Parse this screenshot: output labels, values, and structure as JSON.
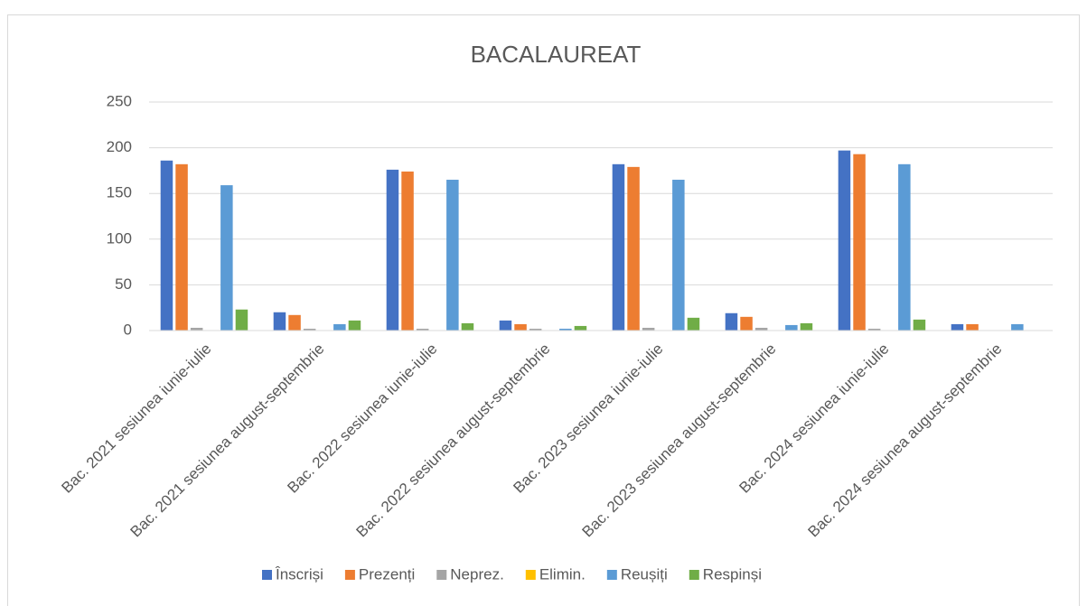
{
  "chart_data": {
    "type": "bar",
    "title": "BACALAUREAT",
    "categories": [
      "Bac. 2021 sesiunea iunie-iulie",
      "Bac. 2021 sesiunea august-septembrie",
      "Bac. 2022 sesiunea iunie-iulie",
      "Bac. 2022 sesiunea august-septembrie",
      "Bac. 2023 sesiunea iunie-iulie",
      "Bac. 2023 sesiunea august-septembrie",
      "Bac. 2024 sesiunea iunie-iulie",
      "Bac. 2024 sesiunea august-septembrie"
    ],
    "series": [
      {
        "name": "Înscriși",
        "color": "#4472c4",
        "values": [
          186,
          20,
          176,
          11,
          182,
          19,
          197,
          7
        ]
      },
      {
        "name": "Prezenți",
        "color": "#ed7d31",
        "values": [
          182,
          17,
          174,
          7,
          179,
          15,
          193,
          7
        ]
      },
      {
        "name": "Neprez.",
        "color": "#a5a5a5",
        "values": [
          3,
          2,
          2,
          2,
          3,
          3,
          2,
          0
        ]
      },
      {
        "name": "Elimin.",
        "color": "#ffc000",
        "values": [
          0,
          0,
          0,
          0,
          0,
          0,
          0,
          0
        ]
      },
      {
        "name": "Reușiți",
        "color": "#5b9bd5",
        "values": [
          159,
          7,
          165,
          2,
          165,
          6,
          182,
          7
        ]
      },
      {
        "name": "Respinși",
        "color": "#70ad47",
        "values": [
          23,
          11,
          8,
          5,
          14,
          8,
          12,
          0
        ]
      }
    ],
    "ylim": [
      0,
      250
    ],
    "yticks": [
      0,
      50,
      100,
      150,
      200,
      250
    ],
    "grid": true,
    "legend": "bottom"
  }
}
